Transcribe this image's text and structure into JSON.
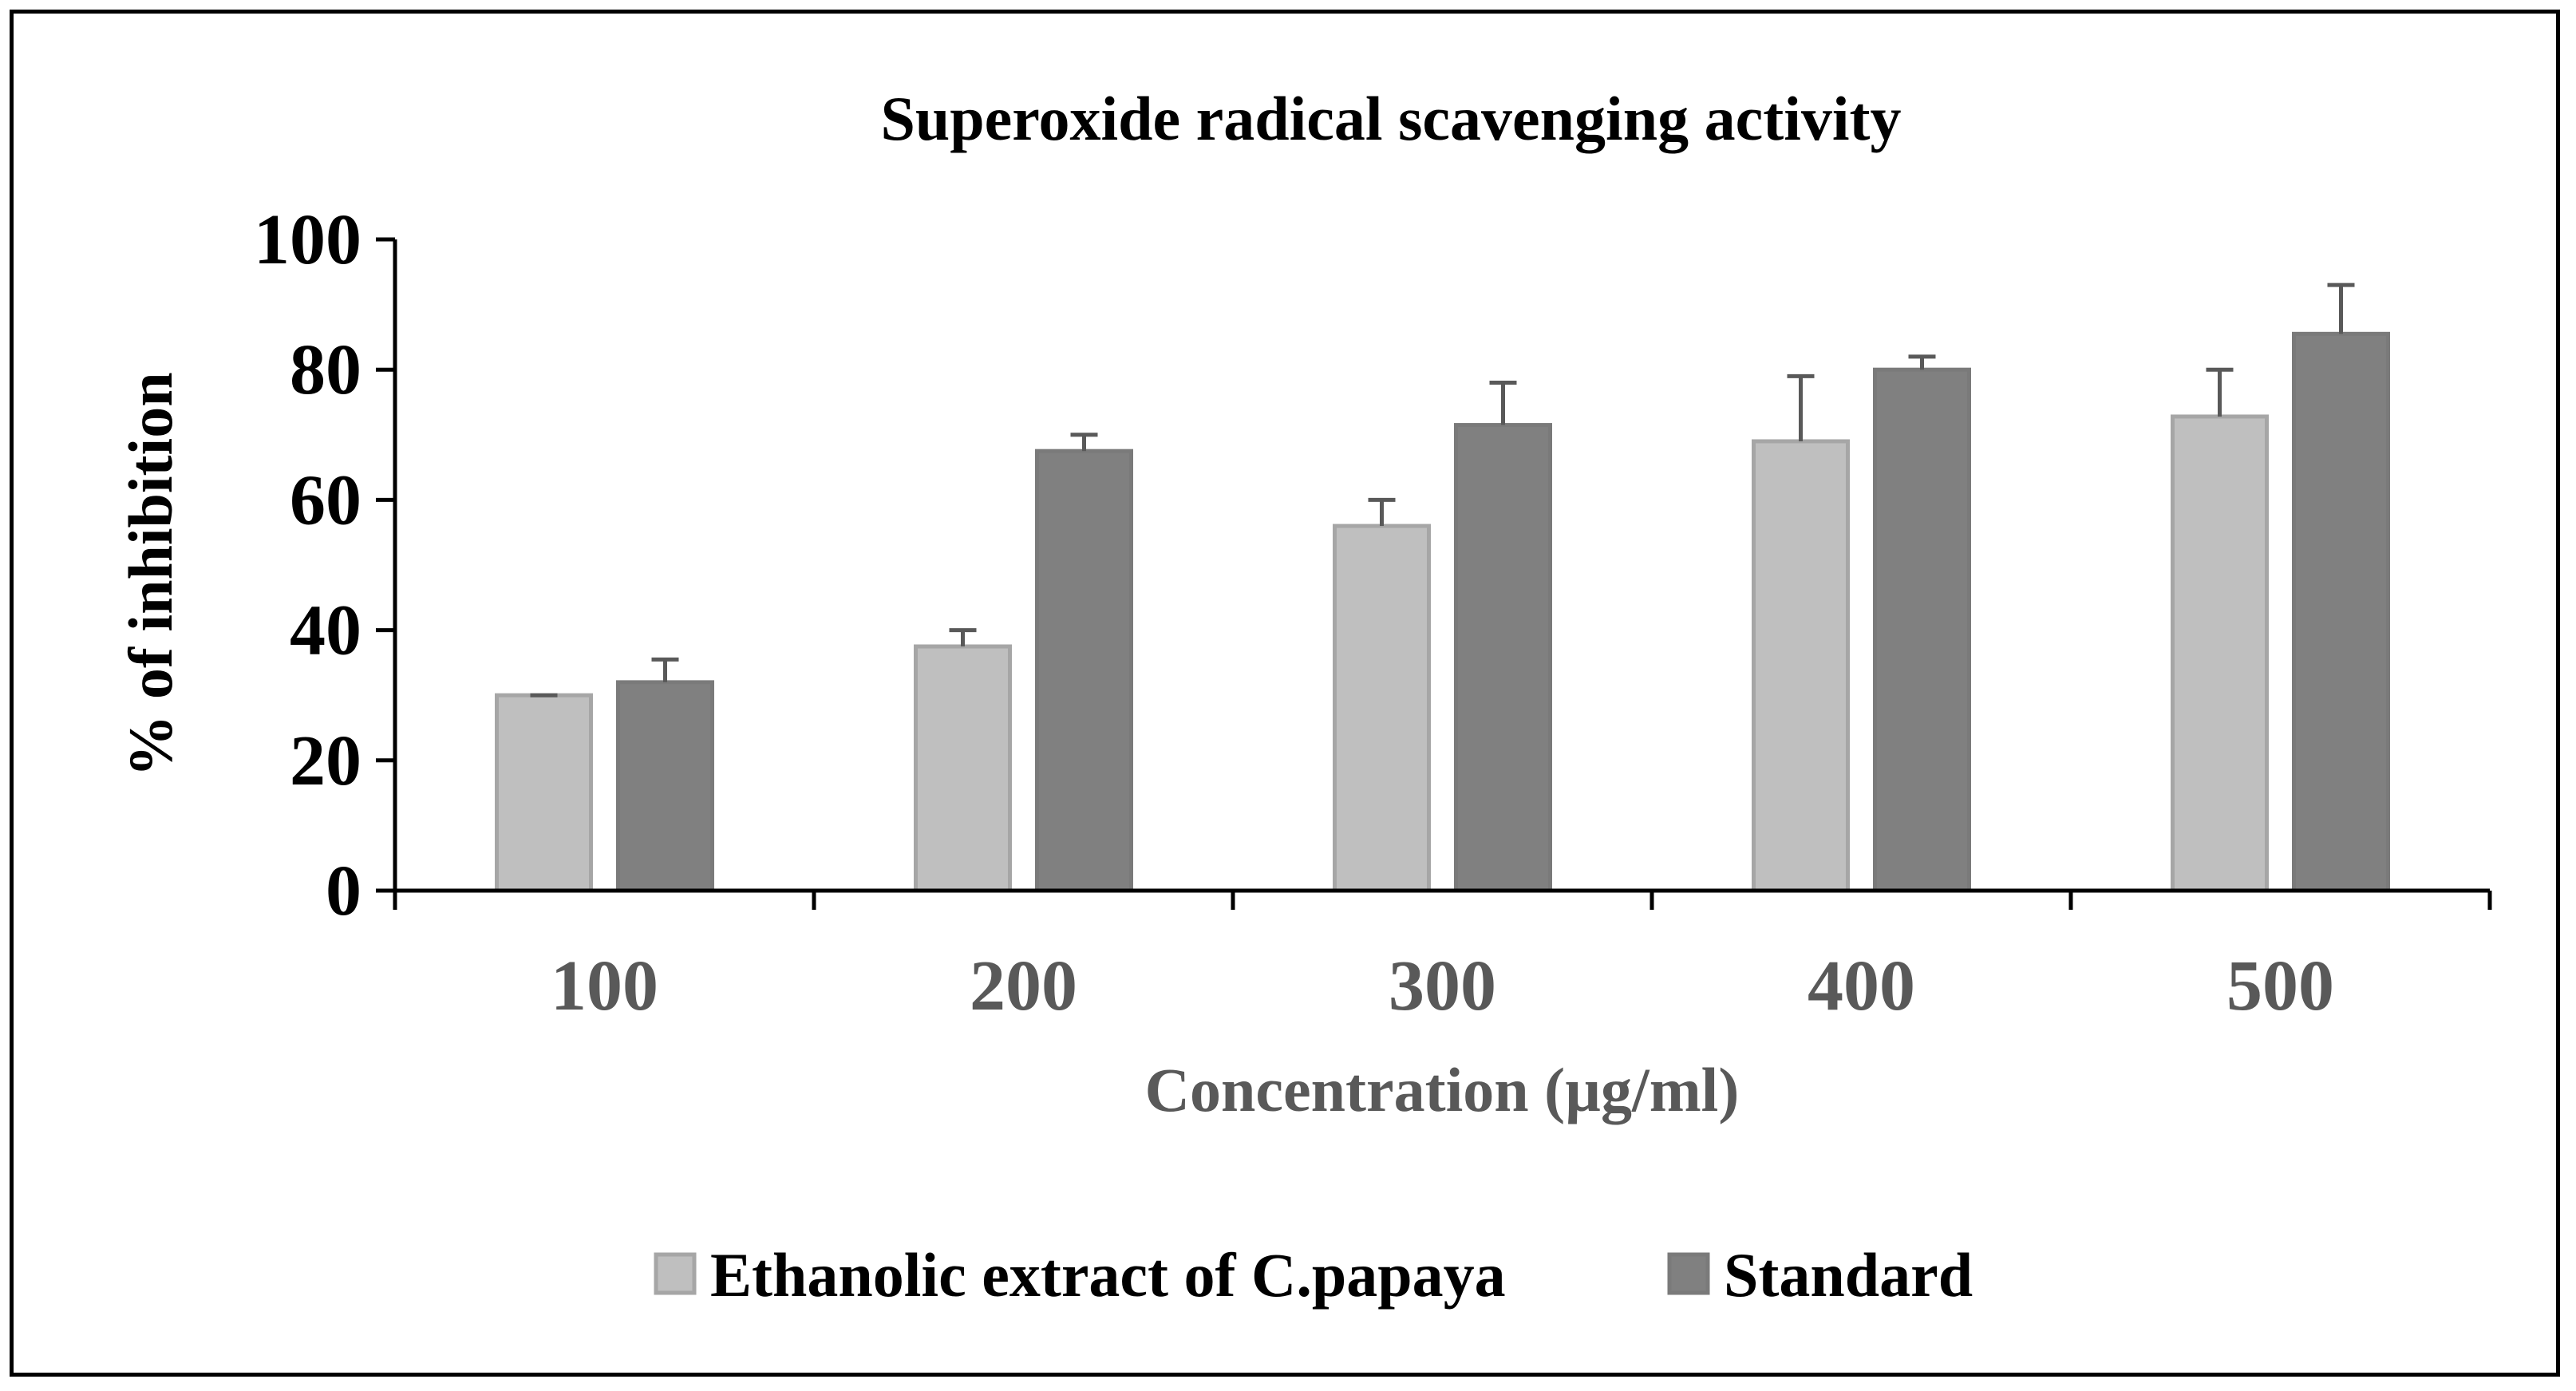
{
  "chart_data": {
    "type": "bar",
    "title": "Superoxide radical scavenging activity",
    "xlabel": "Concentration (µg/ml)",
    "ylabel": "% of inhibition",
    "categories": [
      "100",
      "200",
      "300",
      "400",
      "500"
    ],
    "ylim": [
      0,
      100
    ],
    "yticks": [
      "0",
      "20",
      "40",
      "60",
      "80",
      "100"
    ],
    "grid": false,
    "legend_position": "bottom",
    "series": [
      {
        "name": "Ethanolic extract of C.papaya",
        "values": [
          30,
          37.5,
          56,
          69,
          72.8
        ],
        "errors": [
          0,
          2.5,
          4,
          10,
          7.2
        ],
        "color": "#bfbfbf",
        "edge_color": "#a6a6a6"
      },
      {
        "name": "Standard",
        "values": [
          32,
          67.5,
          71.5,
          80,
          85.5
        ],
        "errors": [
          3.5,
          2.5,
          6.5,
          2,
          7.5
        ],
        "color": "#808080",
        "edge_color": "#7a7a7a"
      }
    ],
    "colors": {
      "axis": "#000000",
      "tick_label_x": "#595959",
      "tick_label_y": "#000000",
      "error_bar": "#595959"
    }
  }
}
